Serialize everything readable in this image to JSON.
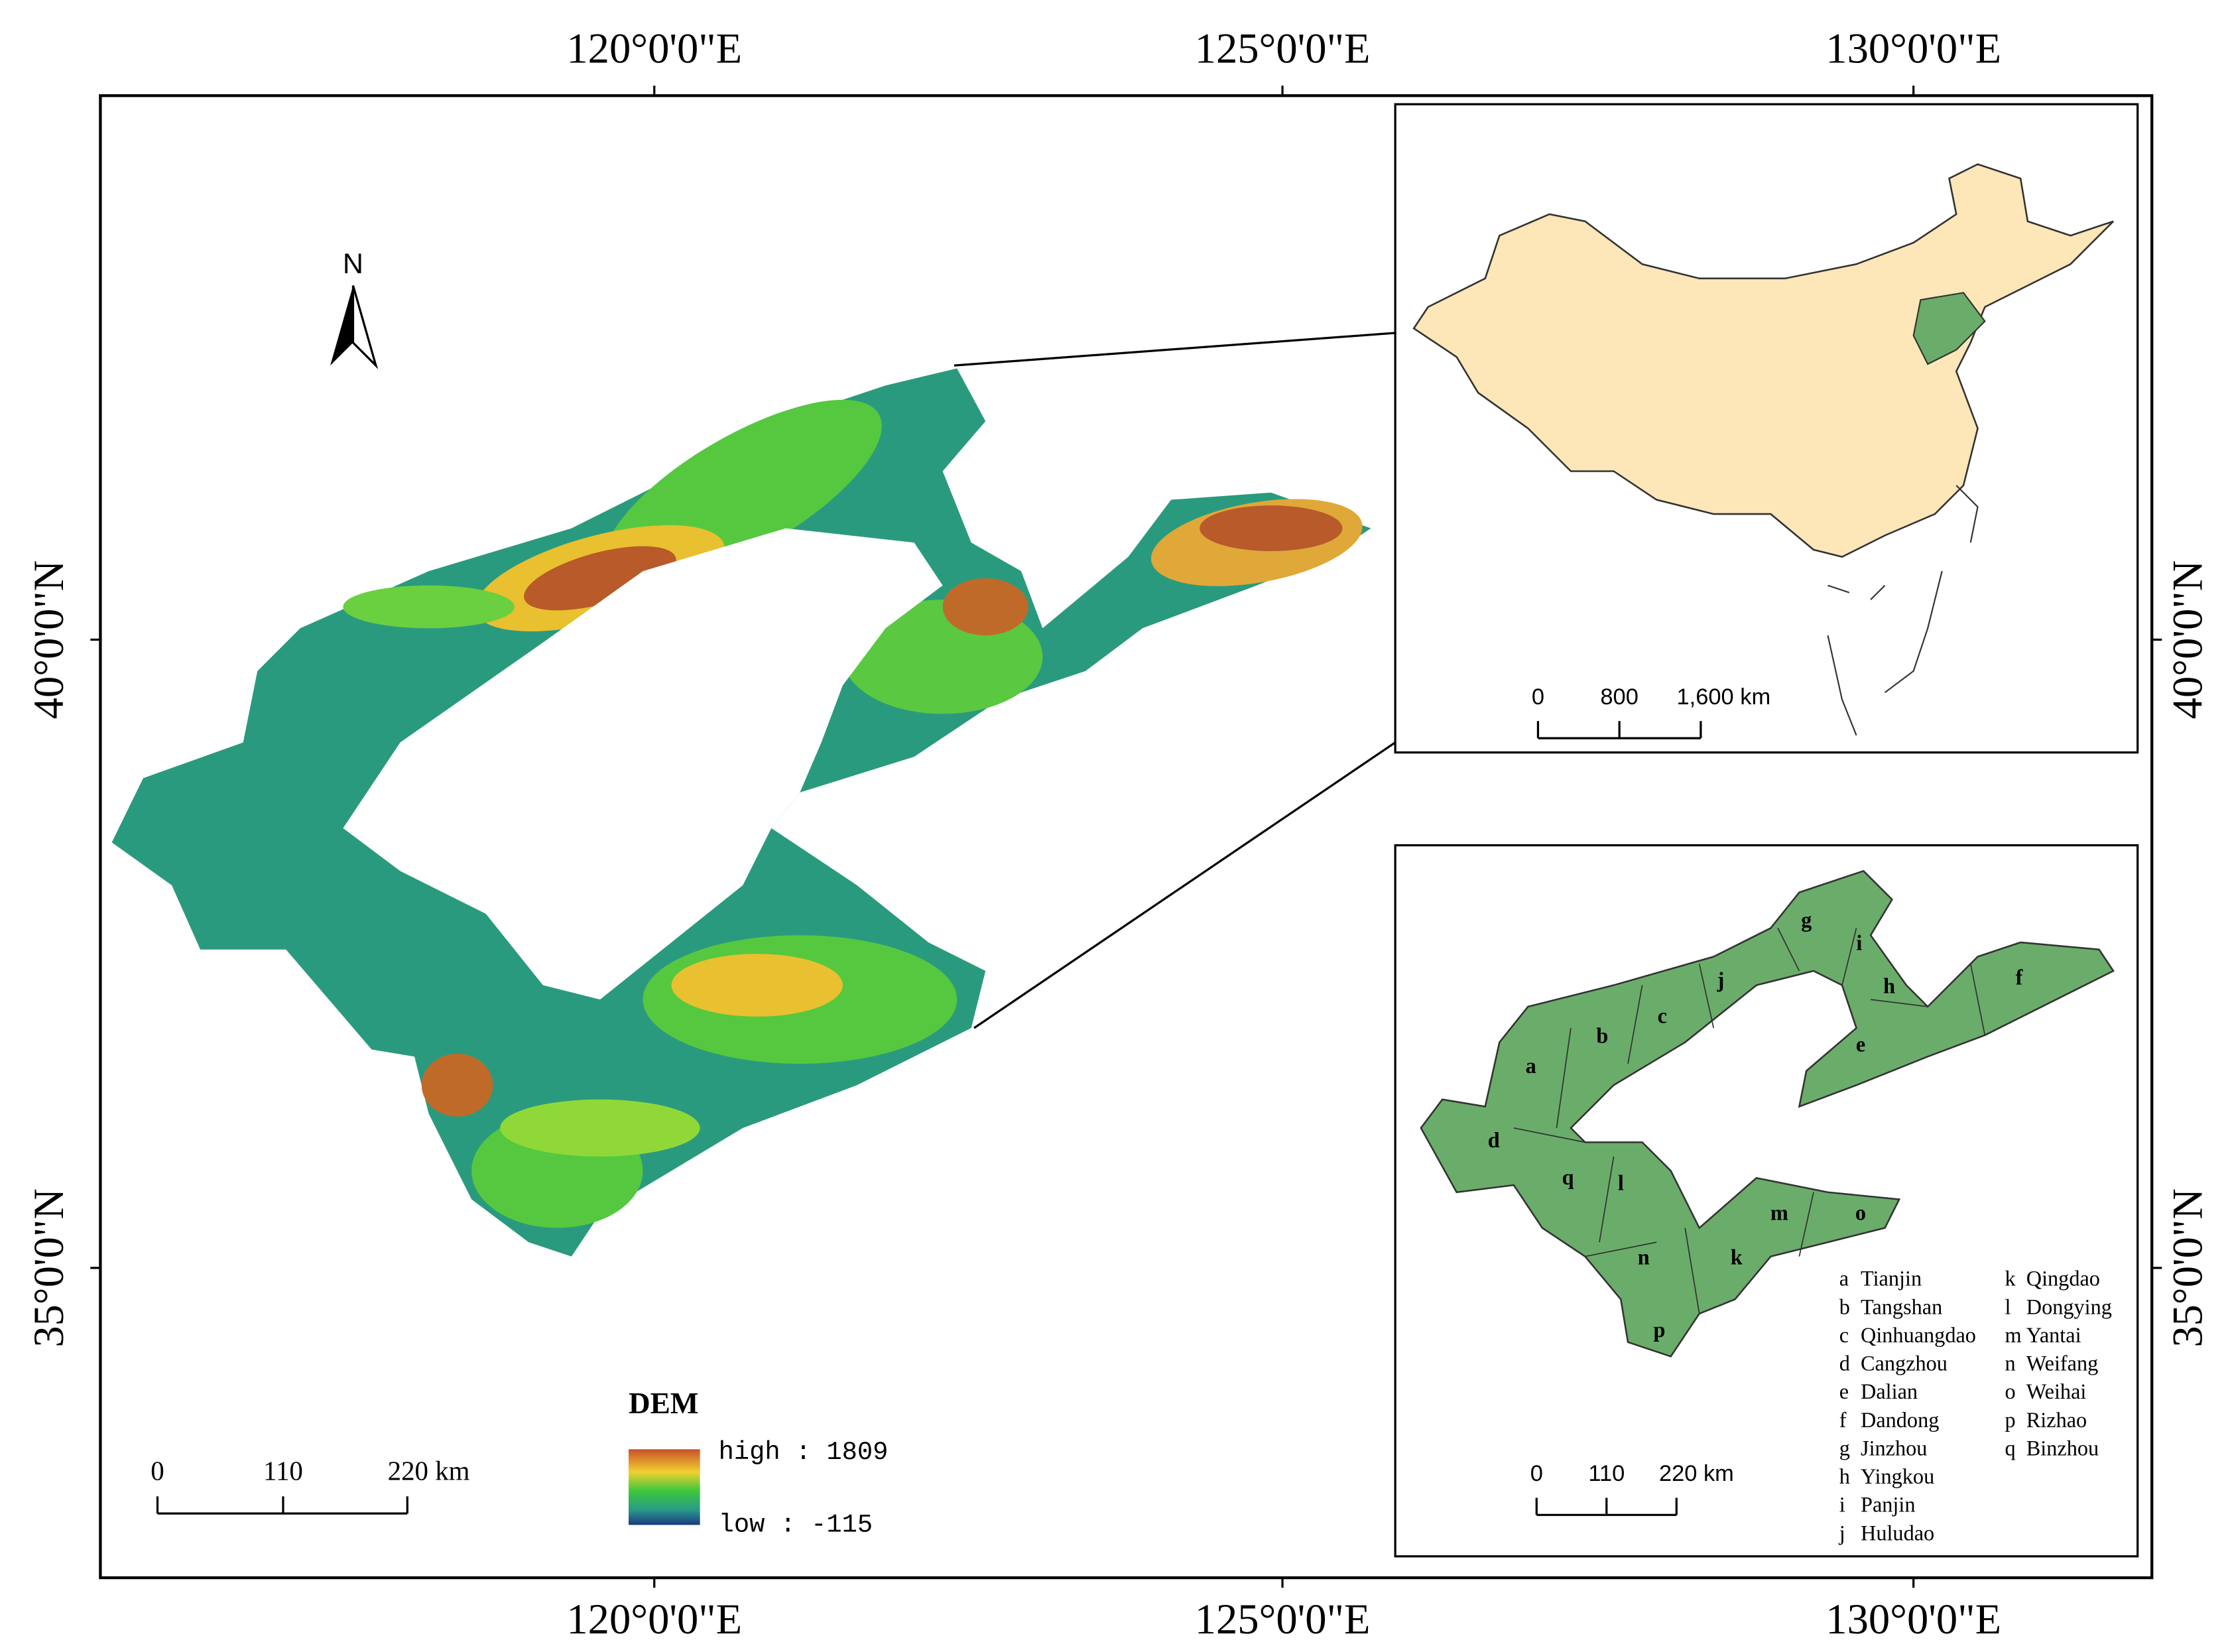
{
  "graticule": {
    "top": [
      "120°0'0\"E",
      "125°0'0\"E",
      "130°0'0\"E"
    ],
    "bottom": [
      "120°0'0\"E",
      "125°0'0\"E",
      "130°0'0\"E"
    ],
    "left": [
      "40°0'0\"N",
      "35°0'0\"N"
    ],
    "right": [
      "40°0'0\"N",
      "35°0'0\"N"
    ]
  },
  "north_arrow": "N",
  "legend": {
    "title": "DEM",
    "high": "high : 1809",
    "low": "low : -115"
  },
  "scale_bar": [
    "0",
    "110",
    "220 km"
  ],
  "inset_china": {
    "scale_bar": [
      "0",
      "800",
      "1,600 km"
    ]
  },
  "inset_cities": {
    "scale_bar": [
      "0",
      "110",
      "220 km"
    ],
    "cities": [
      {
        "letter": "a",
        "name": "Tianjin"
      },
      {
        "letter": "b",
        "name": "Tangshan"
      },
      {
        "letter": "c",
        "name": "Qinhuangdao"
      },
      {
        "letter": "d",
        "name": "Cangzhou"
      },
      {
        "letter": "e",
        "name": "Dalian"
      },
      {
        "letter": "f",
        "name": "Dandong"
      },
      {
        "letter": "g",
        "name": "Jinzhou"
      },
      {
        "letter": "h",
        "name": "Yingkou"
      },
      {
        "letter": "i",
        "name": "Panjin"
      },
      {
        "letter": "j",
        "name": "Huludao"
      },
      {
        "letter": "k",
        "name": "Qingdao"
      },
      {
        "letter": "l",
        "name": "Dongying"
      },
      {
        "letter": "m",
        "name": "Yantai"
      },
      {
        "letter": "n",
        "name": "Weifang"
      },
      {
        "letter": "o",
        "name": "Weihai"
      },
      {
        "letter": "p",
        "name": "Rizhao"
      },
      {
        "letter": "q",
        "name": "Binzhou"
      }
    ]
  }
}
